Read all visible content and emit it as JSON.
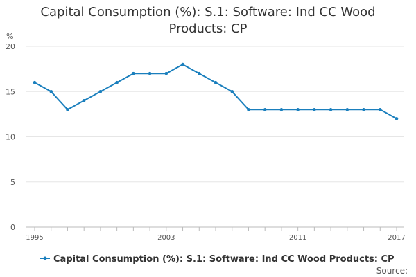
{
  "chart_data": {
    "type": "line",
    "title": "Capital Consumption (%): S.1: Software: Ind CC Wood Products: CP",
    "title_lines": [
      "Capital Consumption (%): S.1: Software: Ind CC Wood",
      "Products: CP"
    ],
    "ylabel": "%",
    "xlabel": "",
    "ylim": [
      0,
      20
    ],
    "yticks": [
      0,
      5,
      10,
      15,
      20
    ],
    "xticks": [
      1995,
      2003,
      2011,
      2017
    ],
    "grid": true,
    "legend_position": "bottom",
    "series": [
      {
        "name": "Capital Consumption (%): S.1: Software: Ind CC Wood Products: CP",
        "color": "#1a7fbd",
        "x": [
          1995,
          1996,
          1997,
          1998,
          1999,
          2000,
          2001,
          2002,
          2003,
          2004,
          2005,
          2006,
          2007,
          2008,
          2009,
          2010,
          2011,
          2012,
          2013,
          2014,
          2015,
          2016,
          2017
        ],
        "values": [
          16,
          15,
          13,
          14,
          15,
          16,
          17,
          17,
          17,
          18,
          17,
          16,
          15,
          13,
          13,
          13,
          13,
          13,
          13,
          13,
          13,
          13,
          12
        ]
      }
    ],
    "source_label": "Source:"
  }
}
